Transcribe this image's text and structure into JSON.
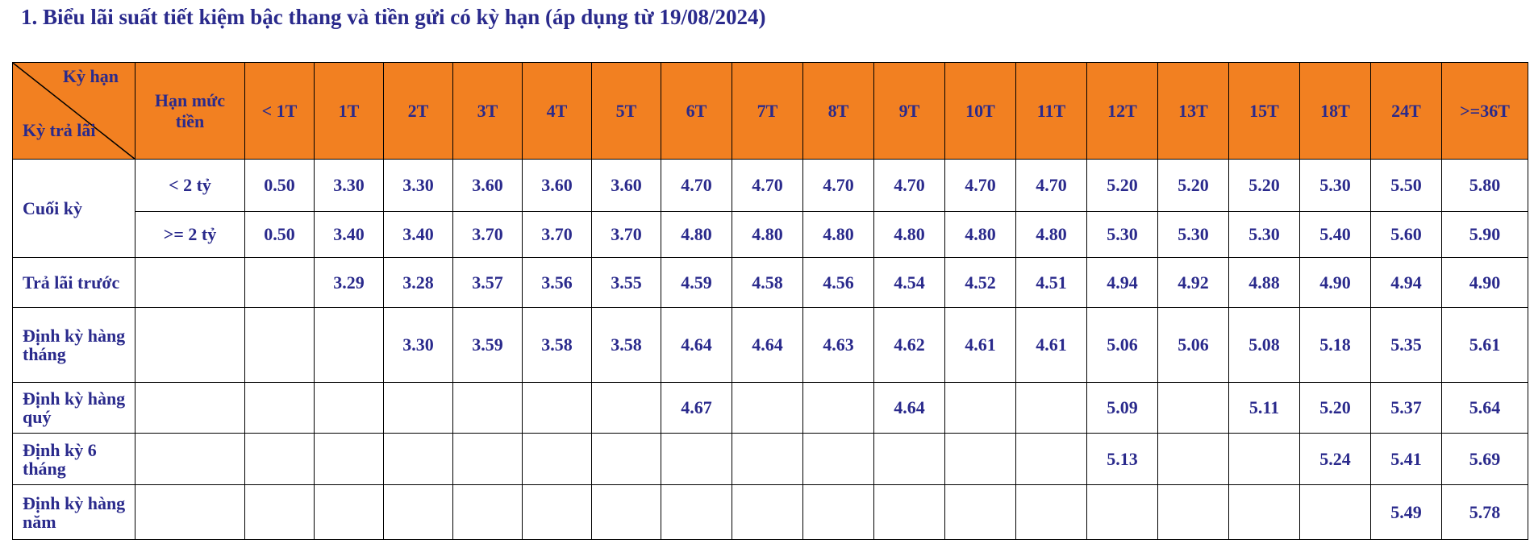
{
  "title": "1.   Biểu lãi suất tiết kiệm bậc thang và tiền gửi có kỳ hạn (áp dụng từ 19/08/2024)",
  "table": {
    "header": {
      "corner_top": "Kỳ hạn",
      "corner_bottom": "Kỳ trả lãi",
      "limit": "Hạn mức tiền",
      "terms": [
        "< 1T",
        "1T",
        "2T",
        "3T",
        "4T",
        "5T",
        "6T",
        "7T",
        "8T",
        "9T",
        "10T",
        "11T",
        "12T",
        "13T",
        "15T",
        "18T",
        "24T",
        ">=36T"
      ]
    },
    "rows": [
      {
        "label": "Cuối kỳ",
        "limit": "< 2 tỷ",
        "values": [
          "0.50",
          "3.30",
          "3.30",
          "3.60",
          "3.60",
          "3.60",
          "4.70",
          "4.70",
          "4.70",
          "4.70",
          "4.70",
          "4.70",
          "5.20",
          "5.20",
          "5.20",
          "5.30",
          "5.50",
          "5.80"
        ]
      },
      {
        "limit": ">= 2 tỷ",
        "values": [
          "0.50",
          "3.40",
          "3.40",
          "3.70",
          "3.70",
          "3.70",
          "4.80",
          "4.80",
          "4.80",
          "4.80",
          "4.80",
          "4.80",
          "5.30",
          "5.30",
          "5.30",
          "5.40",
          "5.60",
          "5.90"
        ]
      },
      {
        "label": "Trả lãi trước",
        "values": [
          null,
          "3.29",
          "3.28",
          "3.57",
          "3.56",
          "3.55",
          "4.59",
          "4.58",
          "4.56",
          "4.54",
          "4.52",
          "4.51",
          "4.94",
          "4.92",
          "4.88",
          "4.90",
          "4.94",
          "4.90"
        ]
      },
      {
        "label": "Định kỳ hàng tháng",
        "values": [
          null,
          null,
          "3.30",
          "3.59",
          "3.58",
          "3.58",
          "4.64",
          "4.64",
          "4.63",
          "4.62",
          "4.61",
          "4.61",
          "5.06",
          "5.06",
          "5.08",
          "5.18",
          "5.35",
          "5.61"
        ]
      },
      {
        "label": "Định kỳ hàng quý",
        "values": [
          null,
          null,
          null,
          null,
          null,
          null,
          "4.67",
          null,
          null,
          "4.64",
          null,
          null,
          "5.09",
          null,
          "5.11",
          "5.20",
          "5.37",
          "5.64"
        ]
      },
      {
        "label": "Định kỳ 6 tháng",
        "values": [
          null,
          null,
          null,
          null,
          null,
          null,
          null,
          null,
          null,
          null,
          null,
          null,
          "5.13",
          null,
          null,
          "5.24",
          "5.41",
          "5.69"
        ]
      },
      {
        "label": "Định kỳ hàng năm",
        "values": [
          null,
          null,
          null,
          null,
          null,
          null,
          null,
          null,
          null,
          null,
          null,
          null,
          null,
          null,
          null,
          null,
          "5.49",
          "5.78"
        ]
      }
    ]
  }
}
